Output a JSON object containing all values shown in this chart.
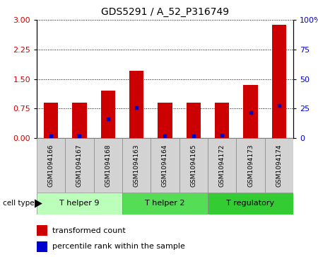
{
  "title": "GDS5291 / A_52_P316749",
  "samples": [
    "GSM1094166",
    "GSM1094167",
    "GSM1094168",
    "GSM1094163",
    "GSM1094164",
    "GSM1094165",
    "GSM1094172",
    "GSM1094173",
    "GSM1094174"
  ],
  "red_values": [
    0.9,
    0.9,
    1.2,
    1.7,
    0.9,
    0.9,
    0.9,
    1.35,
    2.88
  ],
  "blue_values": [
    0.05,
    0.05,
    0.48,
    0.78,
    0.06,
    0.06,
    0.08,
    0.65,
    0.82
  ],
  "groups": [
    {
      "label": "T helper 9",
      "start": 0,
      "end": 3,
      "color": "#bbffbb"
    },
    {
      "label": "T helper 2",
      "start": 3,
      "end": 6,
      "color": "#55dd55"
    },
    {
      "label": "T regulatory",
      "start": 6,
      "end": 9,
      "color": "#33cc33"
    }
  ],
  "ylim_left": [
    0,
    3
  ],
  "ylim_right": [
    0,
    100
  ],
  "yticks_left": [
    0,
    0.75,
    1.5,
    2.25,
    3
  ],
  "yticks_right": [
    0,
    25,
    50,
    75,
    100
  ],
  "bar_color": "#cc0000",
  "dot_color": "#0000cc",
  "tick_label_color_left": "#cc0000",
  "tick_label_color_right": "#0000cc",
  "cell_type_label": "cell type",
  "legend_red": "transformed count",
  "legend_blue": "percentile rank within the sample",
  "bar_width": 0.5
}
